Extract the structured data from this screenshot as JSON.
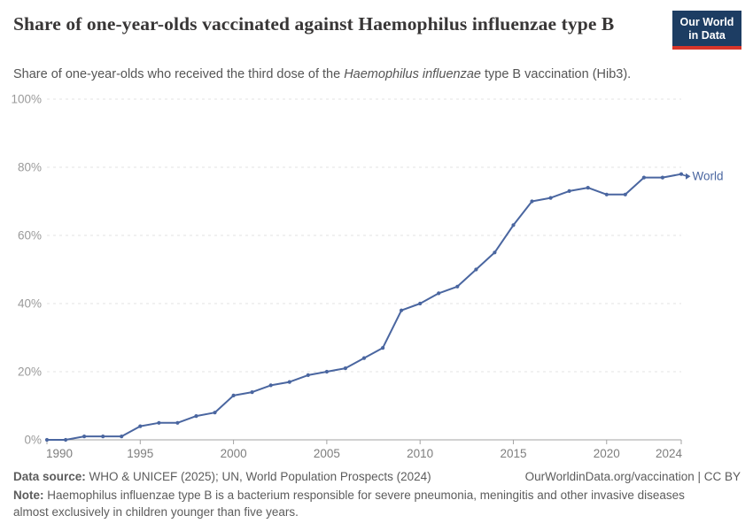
{
  "header": {
    "title": "Share of one-year-olds vaccinated against Haemophilus influenzae type B",
    "subtitle_prefix": "Share of one-year-olds who received the third dose of the ",
    "subtitle_italic": "Haemophilus influenzae",
    "subtitle_suffix": " type B vaccination (Hib3)."
  },
  "logo": {
    "line1": "Our World",
    "line2": "in Data"
  },
  "chart_data": {
    "type": "line",
    "title": "Share of one-year-olds vaccinated against Haemophilus influenzae type B",
    "xlabel": "",
    "ylabel": "",
    "xlim": [
      1990,
      2024
    ],
    "ylim": [
      0,
      100
    ],
    "grid": "horizontal-dashed",
    "legend_position": "end-of-line-label",
    "x_ticks": [
      1990,
      1995,
      2000,
      2005,
      2010,
      2015,
      2020,
      2024
    ],
    "x_tick_labels": [
      "1990",
      "1995",
      "2000",
      "2005",
      "2010",
      "2015",
      "2020",
      "2024"
    ],
    "y_ticks": [
      0,
      20,
      40,
      60,
      80,
      100
    ],
    "y_tick_labels": [
      "0%",
      "20%",
      "40%",
      "60%",
      "80%",
      "100%"
    ],
    "x": [
      1990,
      1991,
      1992,
      1993,
      1994,
      1995,
      1996,
      1997,
      1998,
      1999,
      2000,
      2001,
      2002,
      2003,
      2004,
      2005,
      2006,
      2007,
      2008,
      2009,
      2010,
      2011,
      2012,
      2013,
      2014,
      2015,
      2016,
      2017,
      2018,
      2019,
      2020,
      2021,
      2022,
      2023,
      2024
    ],
    "series": [
      {
        "name": "World",
        "color": "#4A66A0",
        "values": [
          0,
          0,
          1,
          1,
          1,
          4,
          5,
          5,
          7,
          8,
          13,
          14,
          16,
          17,
          19,
          20,
          21,
          24,
          27,
          38,
          40,
          43,
          45,
          50,
          55,
          63,
          70,
          71,
          73,
          74,
          72,
          72,
          77,
          77,
          78
        ]
      }
    ]
  },
  "footer": {
    "data_source_label": "Data source:",
    "data_source_text": " WHO & UNICEF (2025); UN, World Population Prospects (2024)",
    "link": "OurWorldinData.org/vaccination | CC BY",
    "note_label": "Note:",
    "note_text": " Haemophilus influenzae type B is a bacterium responsible for severe pneumonia, meningitis and other invasive diseases almost exclusively in children younger than five years."
  },
  "colors": {
    "accent_blue": "#4A66A0",
    "logo_bg": "#1D3D63",
    "logo_red": "#D8352A",
    "gridline": "#E3E3E3",
    "axis": "#A3A3A3",
    "y_tick_label": "#9A9A9A",
    "x_tick_label": "#7E7E7E",
    "title_text": "#383636",
    "footer_text": "#5C5C5C"
  }
}
